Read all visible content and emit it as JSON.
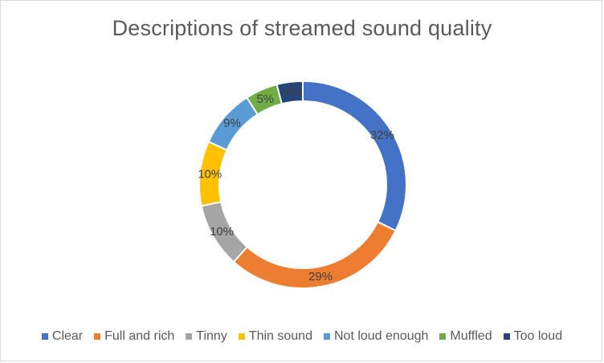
{
  "chart_data": {
    "type": "pie",
    "variant": "doughnut",
    "title": "Descriptions of streamed sound quality",
    "categories": [
      "Clear",
      "Full and rich",
      "Tinny",
      "Thin sound",
      "Not loud enough",
      "Muffled",
      "Too loud"
    ],
    "values": [
      32,
      29,
      10,
      10,
      9,
      5,
      4
    ],
    "labels": [
      "32%",
      "29%",
      "10%",
      "10%",
      "9%",
      "5%",
      "4%"
    ],
    "colors": [
      "#4472c4",
      "#ed7d31",
      "#a5a5a5",
      "#ffc000",
      "#5b9bd5",
      "#70ad47",
      "#264478"
    ],
    "legend_position": "bottom"
  }
}
